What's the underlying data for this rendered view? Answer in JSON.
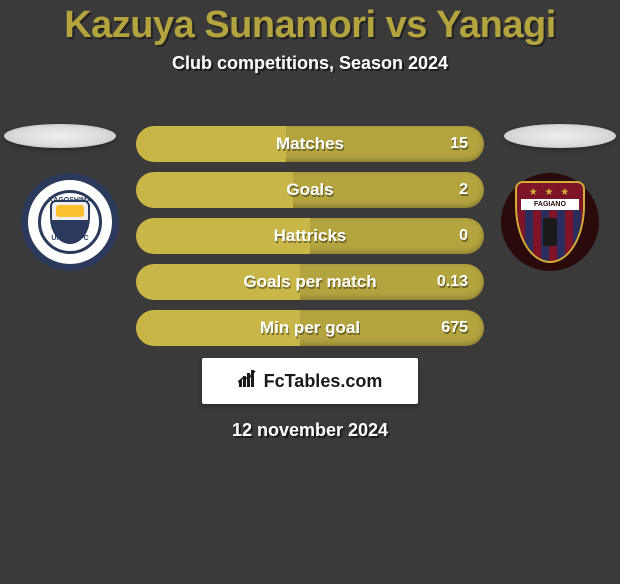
{
  "header": {
    "title": "Kazuya Sunamori vs Yanagi",
    "subtitle": "Club competitions, Season 2024",
    "title_color": "#b4a440",
    "subtitle_color": "#ffffff"
  },
  "bars": {
    "bar_bg": "#b4a440",
    "bar_fill": "#c8b648",
    "text_color": "#ffffff",
    "items": [
      {
        "label": "Matches",
        "value": "15",
        "left_pct": 43
      },
      {
        "label": "Goals",
        "value": "2",
        "left_pct": 45
      },
      {
        "label": "Hattricks",
        "value": "0",
        "left_pct": 50
      },
      {
        "label": "Goals per match",
        "value": "0.13",
        "left_pct": 47
      },
      {
        "label": "Min per goal",
        "value": "675",
        "left_pct": 47
      }
    ]
  },
  "crests": {
    "left": {
      "ring_color": "#2b3a5c",
      "bg_color": "#ffffff",
      "top_text": "KAGOSHIMA",
      "bottom_text": "UNITED FC",
      "shield_accent": "#fbc02d"
    },
    "right": {
      "bg_color": "#2a0a0a",
      "shield_color": "#7e1428",
      "border_color": "#d4af37",
      "banner_text": "FAGIANO",
      "stripe_a": "#7e1428",
      "stripe_b": "#2b2e5c"
    }
  },
  "footer": {
    "brand": "FcTables.com",
    "date": "12 november 2024",
    "panel_bg": "#ffffff"
  }
}
